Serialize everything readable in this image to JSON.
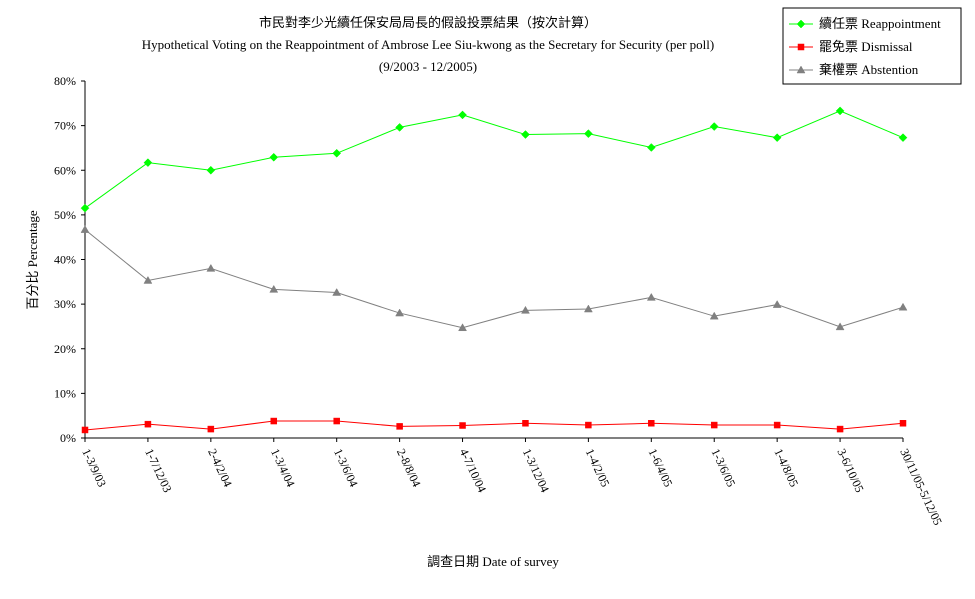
{
  "chart_data": {
    "type": "line",
    "title": "市民對李少光續任保安局局長的假設投票結果（按次計算）",
    "subtitle": "Hypothetical Voting on the Reappointment of Ambrose Lee Siu-kwong as the Secretary for Security (per poll)",
    "period": "(9/2003 - 12/2005)",
    "xlabel": "調查日期 Date of survey",
    "ylabel": "百分比 Percentage",
    "ylim": [
      0,
      80
    ],
    "yticks": [
      "0%",
      "10%",
      "20%",
      "30%",
      "40%",
      "50%",
      "60%",
      "70%",
      "80%"
    ],
    "categories": [
      "1-3/9/03",
      "1-7/12/03",
      "2-4/2/04",
      "1-3/4/04",
      "1-3/6/04",
      "2-8/8/04",
      "4-7/10/04",
      "1-3/12/04",
      "1-4/2/05",
      "1-6/4/05",
      "1-3/6/05",
      "1-4/8/05",
      "3-6/10/05",
      "30/11/05-5/12/05"
    ],
    "legend_position": "top-right",
    "grid": false,
    "series": [
      {
        "name": "續任票 Reappointment",
        "color": "#00ff00",
        "marker": "diamond",
        "values": [
          51.5,
          61.7,
          60.0,
          62.9,
          63.8,
          69.6,
          72.4,
          68.0,
          68.2,
          65.1,
          69.8,
          67.3,
          73.3,
          67.3
        ]
      },
      {
        "name": "罷免票 Dismissal",
        "color": "#ff0000",
        "marker": "square",
        "values": [
          1.8,
          3.1,
          2.0,
          3.8,
          3.8,
          2.6,
          2.8,
          3.3,
          2.9,
          3.3,
          2.9,
          2.9,
          2.0,
          3.3
        ]
      },
      {
        "name": "棄權票 Abstention",
        "color": "#808080",
        "marker": "triangle",
        "values": [
          46.7,
          35.3,
          38.0,
          33.3,
          32.6,
          28.0,
          24.7,
          28.6,
          28.9,
          31.5,
          27.3,
          29.9,
          24.9,
          29.3
        ]
      }
    ]
  }
}
